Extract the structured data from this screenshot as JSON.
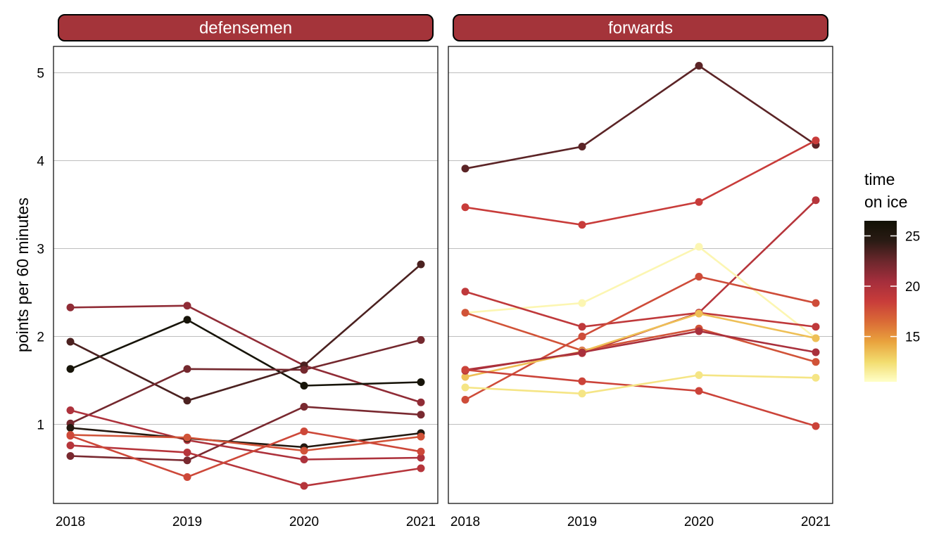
{
  "chart_data": {
    "type": "line",
    "ylabel": "points per 60 minutes",
    "xlabel": "",
    "x": [
      2018,
      2019,
      2020,
      2021
    ],
    "x_tick_labels": [
      "2018",
      "2019",
      "2020",
      "2021"
    ],
    "y_ticks": [
      1,
      2,
      3,
      4,
      5
    ],
    "y_tick_labels": [
      "1",
      "2",
      "3",
      "4",
      "5"
    ],
    "ylim": [
      0.1,
      5.3
    ],
    "grid": "horizontal-major",
    "legend": {
      "title_lines": [
        "time",
        "on ice"
      ],
      "placement": "right",
      "range": [
        10.5,
        26.5
      ],
      "ticks": [
        15,
        20,
        25
      ],
      "tick_labels": [
        "15",
        "20",
        "25"
      ],
      "gradient": [
        "#FFFFC8",
        "#F2DC6E",
        "#E9A23D",
        "#DA6A36",
        "#C83C3A",
        "#A42E3C",
        "#6B272C",
        "#2A1B14",
        "#111105"
      ]
    },
    "panels": [
      {
        "label": "defensemen",
        "lines": [
          {
            "toi": 21.2,
            "values": [
              2.33,
              2.35,
              1.67,
              1.25
            ]
          },
          {
            "toi": 26.0,
            "values": [
              1.63,
              2.19,
              1.44,
              1.48
            ]
          },
          {
            "toi": 23.5,
            "values": [
              1.94,
              1.27,
              1.67,
              2.82
            ]
          },
          {
            "toi": 22.2,
            "values": [
              1.01,
              1.63,
              1.62,
              1.96
            ]
          },
          {
            "toi": 22.0,
            "values": [
              0.64,
              0.59,
              1.2,
              1.11
            ]
          },
          {
            "toi": 20.0,
            "values": [
              1.16,
              0.82,
              0.6,
              0.62
            ]
          },
          {
            "toi": 25.0,
            "values": [
              0.96,
              0.84,
              0.74,
              0.9
            ]
          },
          {
            "toi": 19.5,
            "values": [
              0.76,
              0.68,
              0.3,
              0.5
            ]
          },
          {
            "toi": 17.5,
            "values": [
              0.88,
              0.85,
              0.7,
              0.86
            ]
          },
          {
            "toi": 18.0,
            "values": [
              0.87,
              0.4,
              0.92,
              0.69
            ]
          }
        ]
      },
      {
        "label": "forwards",
        "lines": [
          {
            "toi": 23.0,
            "values": [
              3.91,
              4.16,
              5.08,
              4.18
            ]
          },
          {
            "toi": 18.5,
            "values": [
              3.47,
              3.27,
              3.53,
              4.23
            ]
          },
          {
            "toi": 19.5,
            "values": [
              1.62,
              1.81,
              2.27,
              3.55
            ]
          },
          {
            "toi": 11.0,
            "values": [
              2.27,
              2.38,
              3.02,
              1.98
            ]
          },
          {
            "toi": 17.5,
            "values": [
              2.27,
              1.84,
              2.09,
              1.71
            ]
          },
          {
            "toi": 19.0,
            "values": [
              2.51,
              2.11,
              2.27,
              2.11
            ]
          },
          {
            "toi": 17.8,
            "values": [
              1.28,
              2.0,
              2.68,
              2.38
            ]
          },
          {
            "toi": 13.5,
            "values": [
              1.54,
              1.83,
              2.26,
              1.98
            ]
          },
          {
            "toi": 20.2,
            "values": [
              1.61,
              1.82,
              2.06,
              1.82
            ]
          },
          {
            "toi": 18.2,
            "values": [
              1.62,
              1.49,
              1.38,
              0.98
            ]
          },
          {
            "toi": 12.0,
            "values": [
              1.42,
              1.35,
              1.56,
              1.53
            ]
          }
        ]
      }
    ]
  }
}
